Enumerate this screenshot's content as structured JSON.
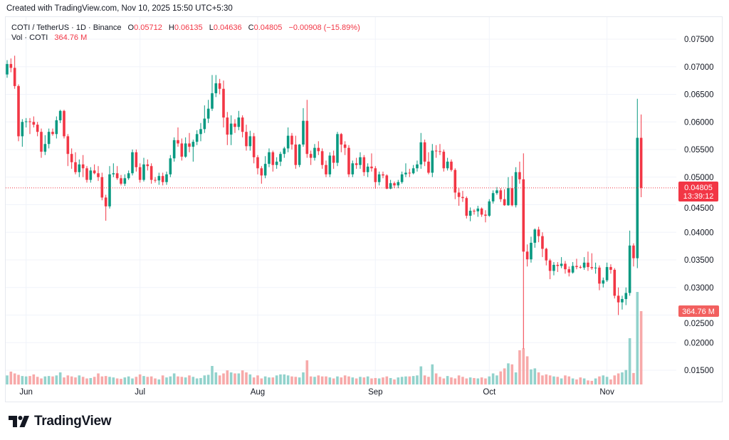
{
  "header": {
    "created_text": "Created with TradingView.com, Nov 10, 2025 15:50 UTC+5:30"
  },
  "legend": {
    "symbol": "COTI / TetherUS · 1D · Binance",
    "open_label": "O",
    "open": "0.05712",
    "high_label": "H",
    "high": "0.06135",
    "low_label": "L",
    "low": "0.04636",
    "close_label": "C",
    "close": "0.04805",
    "change": "−0.00908 (−15.89%)",
    "volume_label": "Vol · COTI",
    "volume": "364.76 M"
  },
  "price_axis": {
    "current_price": "0.04805",
    "countdown": "13:39:12",
    "volume_badge": "364.76 M"
  },
  "colors": {
    "up": "#089981",
    "down": "#f23645",
    "up_vol": "#92d2cc",
    "down_vol": "#f7a9a9",
    "grid": "#f0f3fa"
  },
  "brand": {
    "name": "TradingView"
  },
  "chart_data": {
    "type": "candlestick",
    "title": "COTI / TetherUS · 1D · Binance",
    "ylim": [
      0.0125,
      0.0775
    ],
    "y_ticks": [
      "0.07500",
      "0.07000",
      "0.06500",
      "0.06000",
      "0.05500",
      "0.05000",
      "0.04500",
      "0.04000",
      "0.03500",
      "0.03000",
      "0.02500",
      "0.02000",
      "0.01500"
    ],
    "x_ticks": [
      {
        "label": "Jun",
        "index": 5
      },
      {
        "label": "Jul",
        "index": 35
      },
      {
        "label": "Aug",
        "index": 66
      },
      {
        "label": "Sep",
        "index": 97
      },
      {
        "label": "Oct",
        "index": 127
      },
      {
        "label": "Nov",
        "index": 158
      }
    ],
    "volume_unit": "M",
    "columns": [
      "open",
      "high",
      "low",
      "close",
      "volume"
    ],
    "candles": [
      [
        0.0686,
        0.0712,
        0.068,
        0.0705,
        45
      ],
      [
        0.0705,
        0.0715,
        0.069,
        0.0698,
        64
      ],
      [
        0.0698,
        0.072,
        0.066,
        0.0665,
        55
      ],
      [
        0.0665,
        0.0668,
        0.0565,
        0.0574,
        48
      ],
      [
        0.0574,
        0.0605,
        0.0555,
        0.06,
        42
      ],
      [
        0.06,
        0.0607,
        0.059,
        0.0601,
        40
      ],
      [
        0.0601,
        0.0607,
        0.0578,
        0.06,
        42
      ],
      [
        0.06,
        0.061,
        0.059,
        0.0595,
        50
      ],
      [
        0.0595,
        0.06,
        0.0574,
        0.0582,
        38
      ],
      [
        0.0582,
        0.0588,
        0.0535,
        0.0546,
        30
      ],
      [
        0.0546,
        0.0576,
        0.054,
        0.056,
        40
      ],
      [
        0.056,
        0.0588,
        0.0552,
        0.0582,
        42
      ],
      [
        0.0582,
        0.0588,
        0.0575,
        0.0578,
        40
      ],
      [
        0.0578,
        0.061,
        0.057,
        0.0603,
        45
      ],
      [
        0.0603,
        0.0622,
        0.0598,
        0.062,
        60
      ],
      [
        0.062,
        0.0622,
        0.057,
        0.0574,
        35
      ],
      [
        0.0574,
        0.0578,
        0.052,
        0.0542,
        45
      ],
      [
        0.0542,
        0.0552,
        0.0515,
        0.0527,
        40
      ],
      [
        0.0527,
        0.0545,
        0.0505,
        0.0509,
        35
      ],
      [
        0.0509,
        0.0532,
        0.05,
        0.0523,
        45
      ],
      [
        0.0523,
        0.054,
        0.05,
        0.0516,
        38
      ],
      [
        0.0516,
        0.052,
        0.049,
        0.0495,
        30
      ],
      [
        0.0495,
        0.0518,
        0.049,
        0.0512,
        32
      ],
      [
        0.0512,
        0.0523,
        0.0505,
        0.0507,
        38
      ],
      [
        0.0507,
        0.052,
        0.0493,
        0.05,
        55
      ],
      [
        0.05,
        0.0508,
        0.0458,
        0.0463,
        40
      ],
      [
        0.0463,
        0.0468,
        0.0421,
        0.0447,
        42
      ],
      [
        0.0447,
        0.052,
        0.0443,
        0.0505,
        38
      ],
      [
        0.0505,
        0.0525,
        0.05,
        0.0507,
        35
      ],
      [
        0.0507,
        0.052,
        0.0495,
        0.0498,
        30
      ],
      [
        0.0498,
        0.0504,
        0.0485,
        0.0488,
        28
      ],
      [
        0.0488,
        0.0505,
        0.0484,
        0.0498,
        35
      ],
      [
        0.0498,
        0.0512,
        0.0495,
        0.0507,
        40
      ],
      [
        0.0507,
        0.055,
        0.0503,
        0.0545,
        30
      ],
      [
        0.0545,
        0.055,
        0.051,
        0.0518,
        38
      ],
      [
        0.0518,
        0.0525,
        0.049,
        0.0495,
        50
      ],
      [
        0.0495,
        0.0535,
        0.0492,
        0.0523,
        42
      ],
      [
        0.0523,
        0.0532,
        0.0512,
        0.052,
        38
      ],
      [
        0.052,
        0.0525,
        0.0488,
        0.0495,
        40
      ],
      [
        0.0495,
        0.05,
        0.049,
        0.0494,
        30
      ],
      [
        0.0494,
        0.0508,
        0.0486,
        0.0502,
        25
      ],
      [
        0.0502,
        0.0508,
        0.0485,
        0.0491,
        45
      ],
      [
        0.0491,
        0.051,
        0.0486,
        0.0505,
        35
      ],
      [
        0.0505,
        0.054,
        0.05,
        0.0534,
        40
      ],
      [
        0.0534,
        0.0572,
        0.0528,
        0.0567,
        55
      ],
      [
        0.0567,
        0.059,
        0.0555,
        0.0561,
        40
      ],
      [
        0.0561,
        0.057,
        0.053,
        0.0537,
        38
      ],
      [
        0.0537,
        0.0572,
        0.0535,
        0.0561,
        35
      ],
      [
        0.0561,
        0.058,
        0.0545,
        0.0555,
        45
      ],
      [
        0.0555,
        0.0568,
        0.0528,
        0.0564,
        38
      ],
      [
        0.0564,
        0.0585,
        0.0558,
        0.0578,
        30
      ],
      [
        0.0578,
        0.0598,
        0.0565,
        0.0587,
        32
      ],
      [
        0.0587,
        0.063,
        0.058,
        0.0606,
        45
      ],
      [
        0.0606,
        0.064,
        0.0598,
        0.0624,
        48
      ],
      [
        0.0624,
        0.0685,
        0.062,
        0.0652,
        92
      ],
      [
        0.0652,
        0.0685,
        0.0645,
        0.067,
        60
      ],
      [
        0.067,
        0.0678,
        0.065,
        0.066,
        45
      ],
      [
        0.066,
        0.0675,
        0.059,
        0.0608,
        55
      ],
      [
        0.0608,
        0.0618,
        0.0558,
        0.0577,
        70
      ],
      [
        0.0577,
        0.0612,
        0.0558,
        0.0597,
        60
      ],
      [
        0.0597,
        0.0605,
        0.058,
        0.0591,
        55
      ],
      [
        0.0591,
        0.062,
        0.0585,
        0.0608,
        55
      ],
      [
        0.0608,
        0.0612,
        0.0572,
        0.0582,
        70
      ],
      [
        0.0582,
        0.0595,
        0.0548,
        0.0556,
        60
      ],
      [
        0.0556,
        0.0584,
        0.0548,
        0.0574,
        50
      ],
      [
        0.0574,
        0.058,
        0.0525,
        0.0536,
        35
      ],
      [
        0.0536,
        0.054,
        0.0505,
        0.0516,
        45
      ],
      [
        0.0516,
        0.052,
        0.0488,
        0.0503,
        30
      ],
      [
        0.0503,
        0.0538,
        0.0498,
        0.0524,
        40
      ],
      [
        0.0524,
        0.0552,
        0.0518,
        0.0545,
        35
      ],
      [
        0.0545,
        0.0548,
        0.051,
        0.0522,
        35
      ],
      [
        0.0522,
        0.0536,
        0.0515,
        0.0528,
        45
      ],
      [
        0.0528,
        0.0546,
        0.052,
        0.0542,
        50
      ],
      [
        0.0542,
        0.0555,
        0.0535,
        0.0552,
        50
      ],
      [
        0.0552,
        0.059,
        0.0545,
        0.0575,
        45
      ],
      [
        0.0575,
        0.058,
        0.055,
        0.0559,
        40
      ],
      [
        0.0559,
        0.0575,
        0.0515,
        0.0522,
        38
      ],
      [
        0.0522,
        0.056,
        0.0518,
        0.0559,
        35
      ],
      [
        0.0559,
        0.0625,
        0.0555,
        0.0602,
        60
      ],
      [
        0.0602,
        0.064,
        0.0535,
        0.0542,
        120
      ],
      [
        0.0542,
        0.0548,
        0.0522,
        0.0535,
        40
      ],
      [
        0.0535,
        0.056,
        0.053,
        0.0553,
        38
      ],
      [
        0.0553,
        0.0565,
        0.054,
        0.0547,
        45
      ],
      [
        0.0547,
        0.0552,
        0.0515,
        0.0522,
        40
      ],
      [
        0.0522,
        0.053,
        0.05,
        0.0505,
        40
      ],
      [
        0.0505,
        0.0545,
        0.05,
        0.0539,
        35
      ],
      [
        0.0539,
        0.0548,
        0.0515,
        0.0526,
        30
      ],
      [
        0.0526,
        0.0582,
        0.052,
        0.0578,
        40
      ],
      [
        0.0578,
        0.058,
        0.0545,
        0.0559,
        35
      ],
      [
        0.0559,
        0.0565,
        0.054,
        0.0553,
        45
      ],
      [
        0.0553,
        0.0558,
        0.05,
        0.0505,
        40
      ],
      [
        0.0505,
        0.053,
        0.05,
        0.0525,
        35
      ],
      [
        0.0525,
        0.0535,
        0.0515,
        0.0522,
        30
      ],
      [
        0.0522,
        0.0545,
        0.0515,
        0.0536,
        38
      ],
      [
        0.0536,
        0.054,
        0.0502,
        0.0509,
        35
      ],
      [
        0.0509,
        0.0525,
        0.05,
        0.0519,
        40
      ],
      [
        0.0519,
        0.0543,
        0.051,
        0.0516,
        30
      ],
      [
        0.0516,
        0.052,
        0.0479,
        0.0491,
        32
      ],
      [
        0.0491,
        0.051,
        0.0485,
        0.0505,
        30
      ],
      [
        0.0505,
        0.051,
        0.0498,
        0.0503,
        35
      ],
      [
        0.0503,
        0.0505,
        0.0478,
        0.0479,
        40
      ],
      [
        0.0479,
        0.0495,
        0.0478,
        0.0489,
        32
      ],
      [
        0.0489,
        0.0492,
        0.048,
        0.0485,
        25
      ],
      [
        0.0485,
        0.0495,
        0.048,
        0.0491,
        35
      ],
      [
        0.0491,
        0.051,
        0.0488,
        0.0505,
        38
      ],
      [
        0.0505,
        0.0525,
        0.05,
        0.0508,
        40
      ],
      [
        0.0508,
        0.0515,
        0.05,
        0.0507,
        40
      ],
      [
        0.0507,
        0.0522,
        0.0505,
        0.0516,
        42
      ],
      [
        0.0516,
        0.053,
        0.051,
        0.0523,
        45
      ],
      [
        0.0523,
        0.058,
        0.0515,
        0.0563,
        90
      ],
      [
        0.0563,
        0.0568,
        0.052,
        0.0528,
        45
      ],
      [
        0.0528,
        0.0545,
        0.0505,
        0.0508,
        38
      ],
      [
        0.0508,
        0.056,
        0.05,
        0.0548,
        100
      ],
      [
        0.0548,
        0.0558,
        0.0535,
        0.0547,
        55
      ],
      [
        0.0547,
        0.056,
        0.054,
        0.0546,
        38
      ],
      [
        0.0546,
        0.055,
        0.051,
        0.0516,
        30
      ],
      [
        0.0516,
        0.0535,
        0.0512,
        0.0528,
        42
      ],
      [
        0.0528,
        0.0532,
        0.051,
        0.0513,
        35
      ],
      [
        0.0513,
        0.0516,
        0.046,
        0.0472,
        30
      ],
      [
        0.0472,
        0.048,
        0.0448,
        0.0464,
        45
      ],
      [
        0.0464,
        0.0475,
        0.0455,
        0.0462,
        38
      ],
      [
        0.0462,
        0.0465,
        0.0425,
        0.043,
        30
      ],
      [
        0.043,
        0.0445,
        0.042,
        0.0439,
        35
      ],
      [
        0.0439,
        0.0442,
        0.0432,
        0.0438,
        32
      ],
      [
        0.0438,
        0.0448,
        0.0428,
        0.0443,
        30
      ],
      [
        0.0443,
        0.0445,
        0.0428,
        0.0432,
        35
      ],
      [
        0.0432,
        0.044,
        0.0418,
        0.043,
        30
      ],
      [
        0.043,
        0.046,
        0.0428,
        0.0456,
        40
      ],
      [
        0.0456,
        0.0476,
        0.0452,
        0.0471,
        55
      ],
      [
        0.0471,
        0.0482,
        0.0468,
        0.0476,
        45
      ],
      [
        0.0476,
        0.048,
        0.0455,
        0.046,
        65
      ],
      [
        0.046,
        0.0478,
        0.0448,
        0.0449,
        80
      ],
      [
        0.0449,
        0.05,
        0.0448,
        0.048,
        105
      ],
      [
        0.048,
        0.0502,
        0.0447,
        0.0449,
        100
      ],
      [
        0.0449,
        0.0518,
        0.0445,
        0.0509,
        60
      ],
      [
        0.0509,
        0.0528,
        0.0488,
        0.0496,
        170
      ],
      [
        0.0496,
        0.0543,
        0.0189,
        0.0365,
        180
      ],
      [
        0.0365,
        0.0378,
        0.0338,
        0.0351,
        140
      ],
      [
        0.0351,
        0.0392,
        0.0345,
        0.0381,
        75
      ],
      [
        0.0381,
        0.0407,
        0.0372,
        0.0405,
        80
      ],
      [
        0.0405,
        0.041,
        0.0382,
        0.0393,
        60
      ],
      [
        0.0393,
        0.04,
        0.0355,
        0.037,
        45
      ],
      [
        0.037,
        0.0372,
        0.034,
        0.0349,
        50
      ],
      [
        0.0349,
        0.0352,
        0.0315,
        0.033,
        45
      ],
      [
        0.033,
        0.0346,
        0.0322,
        0.0341,
        40
      ],
      [
        0.0341,
        0.0346,
        0.0328,
        0.0339,
        38
      ],
      [
        0.0339,
        0.0355,
        0.0335,
        0.0343,
        30
      ],
      [
        0.0343,
        0.0348,
        0.0325,
        0.0333,
        45
      ],
      [
        0.0333,
        0.0338,
        0.032,
        0.0327,
        40
      ],
      [
        0.0327,
        0.0346,
        0.0325,
        0.0339,
        30
      ],
      [
        0.0339,
        0.0352,
        0.0333,
        0.0337,
        25
      ],
      [
        0.0337,
        0.034,
        0.0334,
        0.0336,
        35
      ],
      [
        0.0336,
        0.0355,
        0.0332,
        0.0345,
        30
      ],
      [
        0.0345,
        0.0365,
        0.033,
        0.0337,
        20
      ],
      [
        0.0337,
        0.0362,
        0.0332,
        0.0335,
        18
      ],
      [
        0.0335,
        0.0345,
        0.0325,
        0.0336,
        30
      ],
      [
        0.0336,
        0.034,
        0.0295,
        0.0307,
        40
      ],
      [
        0.0307,
        0.0318,
        0.03,
        0.0313,
        45
      ],
      [
        0.0313,
        0.0345,
        0.031,
        0.0337,
        38
      ],
      [
        0.0337,
        0.0342,
        0.0325,
        0.0332,
        25
      ],
      [
        0.0332,
        0.0335,
        0.028,
        0.0285,
        45
      ],
      [
        0.0285,
        0.03,
        0.025,
        0.0273,
        55
      ],
      [
        0.0273,
        0.0285,
        0.026,
        0.0279,
        60
      ],
      [
        0.0279,
        0.03,
        0.0268,
        0.029,
        72
      ],
      [
        0.029,
        0.0403,
        0.0285,
        0.0376,
        230
      ],
      [
        0.0376,
        0.038,
        0.0338,
        0.0353,
        57
      ],
      [
        0.0353,
        0.0642,
        0.0335,
        0.05712,
        460
      ],
      [
        0.05712,
        0.06135,
        0.04636,
        0.04805,
        364.76
      ]
    ]
  }
}
